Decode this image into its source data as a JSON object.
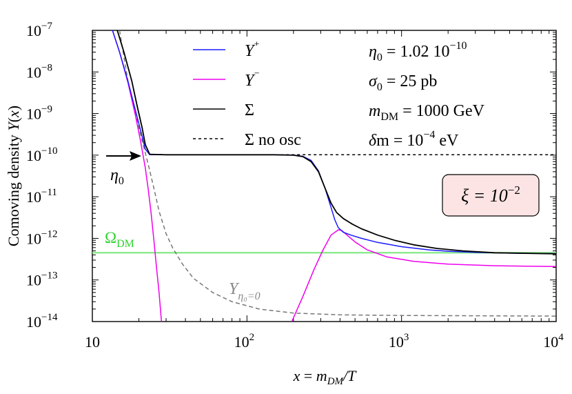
{
  "chart_data": {
    "type": "line",
    "title": "",
    "xlabel": "x = m_DM/T",
    "ylabel": "Comoving density Y(x)",
    "xscale": "log",
    "yscale": "log",
    "xlim": [
      10,
      10000
    ],
    "ylim": [
      1e-14,
      1e-07
    ],
    "grid": false,
    "x_ticks": [
      {
        "value": 10,
        "base": "10",
        "exp": ""
      },
      {
        "value": 100,
        "base": "10",
        "exp": "2"
      },
      {
        "value": 1000,
        "base": "10",
        "exp": "3"
      },
      {
        "value": 10000,
        "base": "10",
        "exp": "4"
      }
    ],
    "y_ticks": [
      {
        "value": 1e-07,
        "base": "10",
        "exp": "−7"
      },
      {
        "value": 1e-08,
        "base": "10",
        "exp": "−8"
      },
      {
        "value": 1e-09,
        "base": "10",
        "exp": "−9"
      },
      {
        "value": 1e-10,
        "base": "10",
        "exp": "−10"
      },
      {
        "value": 1e-11,
        "base": "10",
        "exp": "−11"
      },
      {
        "value": 1e-12,
        "base": "10",
        "exp": "−12"
      },
      {
        "value": 1e-13,
        "base": "10",
        "exp": "−13"
      },
      {
        "value": 1e-14,
        "base": "10",
        "exp": "−14"
      }
    ],
    "series": [
      {
        "name": "Y⁺",
        "color": "#1a1aff",
        "dash": "none",
        "points": [
          [
            13.5,
            1e-07
          ],
          [
            15,
            3e-08
          ],
          [
            17,
            6e-09
          ],
          [
            19,
            1.2e-09
          ],
          [
            20.5,
            4e-10
          ],
          [
            22,
            1.4e-10
          ],
          [
            23.5,
            1.03e-10
          ],
          [
            30,
            1.02e-10
          ],
          [
            100,
            1.02e-10
          ],
          [
            150,
            1.02e-10
          ],
          [
            200,
            1e-10
          ],
          [
            230,
            9.4e-11
          ],
          [
            260,
            7.5e-11
          ],
          [
            290,
            4.2e-11
          ],
          [
            320,
            1.6e-11
          ],
          [
            350,
            5.5e-12
          ],
          [
            370,
            2.8e-12
          ],
          [
            390,
            1.8e-12
          ],
          [
            420,
            1.4e-12
          ],
          [
            470,
            1.2e-12
          ],
          [
            550,
            1e-12
          ],
          [
            700,
            8e-13
          ],
          [
            1000,
            6.3e-13
          ],
          [
            1500,
            5.3e-13
          ],
          [
            2000,
            4.9e-13
          ],
          [
            3000,
            4.6e-13
          ],
          [
            5000,
            4.4e-13
          ],
          [
            10000,
            4.3e-13
          ]
        ]
      },
      {
        "name": "Y⁻",
        "color": "#ee00ee",
        "dash": "none",
        "points_a": [
          [
            13.5,
            1e-07
          ],
          [
            15,
            3e-08
          ],
          [
            17,
            5.5e-09
          ],
          [
            19,
            9e-10
          ],
          [
            20.5,
            2.2e-10
          ],
          [
            22,
            5e-11
          ],
          [
            23,
            1.5e-11
          ],
          [
            24,
            4e-12
          ],
          [
            25,
            9e-13
          ],
          [
            26,
            2e-13
          ],
          [
            27,
            5e-14
          ],
          [
            28,
            1e-14
          ]
        ],
        "points_b": [
          [
            195,
            1e-14
          ],
          [
            230,
            4e-14
          ],
          [
            270,
            1.7e-13
          ],
          [
            310,
            5.2e-13
          ],
          [
            350,
            1.2e-12
          ],
          [
            390,
            1.6e-12
          ],
          [
            410,
            1.55e-12
          ],
          [
            450,
            1.15e-12
          ],
          [
            500,
            8.2e-13
          ],
          [
            600,
            5.3e-13
          ],
          [
            800,
            3.6e-13
          ],
          [
            1200,
            2.8e-13
          ],
          [
            2000,
            2.4e-13
          ],
          [
            4000,
            2.2e-13
          ],
          [
            10000,
            2.1e-13
          ]
        ]
      },
      {
        "name": "Σ",
        "color": "#000000",
        "dash": "none",
        "points": [
          [
            14.5,
            1e-07
          ],
          [
            16,
            3e-08
          ],
          [
            18,
            6e-09
          ],
          [
            19.5,
            1.5e-09
          ],
          [
            21,
            4.5e-10
          ],
          [
            22,
            1.8e-10
          ],
          [
            23.5,
            1.05e-10
          ],
          [
            30,
            1.02e-10
          ],
          [
            100,
            1.02e-10
          ],
          [
            150,
            1.02e-10
          ],
          [
            200,
            1e-10
          ],
          [
            230,
            9.2e-11
          ],
          [
            260,
            7e-11
          ],
          [
            290,
            4e-11
          ],
          [
            320,
            1.6e-11
          ],
          [
            350,
            7e-12
          ],
          [
            380,
            4.2e-12
          ],
          [
            420,
            3e-12
          ],
          [
            480,
            2.2e-12
          ],
          [
            550,
            1.7e-12
          ],
          [
            700,
            1.2e-12
          ],
          [
            900,
            9e-13
          ],
          [
            1200,
            7e-13
          ],
          [
            1700,
            5.7e-13
          ],
          [
            2500,
            5e-13
          ],
          [
            4000,
            4.5e-13
          ],
          [
            10000,
            4.25e-13
          ]
        ]
      },
      {
        "name": "Σ no osc",
        "color": "#000000",
        "dash": "4,4",
        "points": [
          [
            14.5,
            1e-07
          ],
          [
            16,
            3e-08
          ],
          [
            18,
            6e-09
          ],
          [
            19.5,
            1.5e-09
          ],
          [
            21,
            4.5e-10
          ],
          [
            22,
            1.8e-10
          ],
          [
            23.5,
            1.05e-10
          ],
          [
            30,
            1.02e-10
          ],
          [
            10000,
            1.02e-10
          ]
        ]
      },
      {
        "name": "Y_η0=0",
        "color": "#777777",
        "dash": "6,4",
        "points": [
          [
            15,
            1e-07
          ],
          [
            17,
            6e-09
          ],
          [
            19,
            1e-09
          ],
          [
            21,
            2.2e-10
          ],
          [
            23,
            6e-11
          ],
          [
            25,
            1.6e-11
          ],
          [
            27,
            4.5e-12
          ],
          [
            30,
            1.3e-12
          ],
          [
            33,
            6e-13
          ],
          [
            38,
            2.5e-13
          ],
          [
            45,
            1.1e-13
          ],
          [
            60,
            5e-14
          ],
          [
            80,
            3e-14
          ],
          [
            120,
            2e-14
          ],
          [
            200,
            1.6e-14
          ],
          [
            400,
            1.45e-14
          ],
          [
            1000,
            1.4e-14
          ],
          [
            10000,
            1.35e-14
          ]
        ]
      },
      {
        "name": "Ω_DM",
        "color": "#7fe87f",
        "dash": "none",
        "points": [
          [
            10,
            4.5e-13
          ],
          [
            10000,
            4.5e-13
          ]
        ]
      }
    ],
    "legend": {
      "position": "top-center",
      "entries": [
        "Y⁺",
        "Y⁻",
        "Σ",
        "Σ no osc"
      ]
    },
    "parameters": [
      {
        "sym": "η",
        "sub": "0",
        "rest": " = 1.02 10",
        "sup": "−10",
        "tail": ""
      },
      {
        "sym": "σ",
        "sub": "0",
        "rest": " = 25 pb",
        "sup": "",
        "tail": ""
      },
      {
        "sym": "m",
        "sub": "DM",
        "rest": " = 1000 GeV",
        "sup": "",
        "tail": ""
      },
      {
        "sym": "δ",
        "sub": "",
        "rest": "m = 10",
        "sup": "−4",
        "tail": " eV"
      }
    ],
    "xi_box": {
      "label": "ξ = 10",
      "sup": "−2",
      "fill": "#fde4e4"
    },
    "annotations": {
      "eta0_label": "η",
      "eta0_sub": "0",
      "omega_label": "Ω",
      "omega_sub": "DM",
      "yeta_label": "Y",
      "yeta_sub": "η₀=0"
    }
  }
}
